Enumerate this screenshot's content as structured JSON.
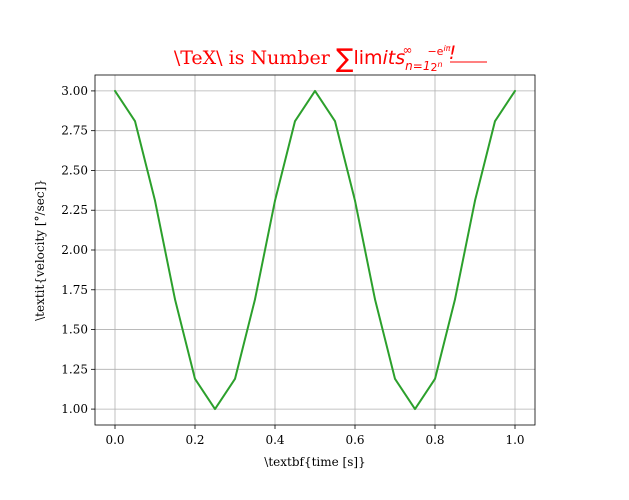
{
  "chart_data": {
    "type": "line",
    "title": "\\TeX\\ is Number ∑lim its n=1 ∞ −e^{iπ}/2^n !",
    "title_parts": {
      "roman": "\\TeX\\ is Number ",
      "sigma": "∑",
      "lim": "lim",
      "its": "its",
      "sub": "n=1",
      "sup": "∞",
      "frac_num": "−e",
      "frac_num_sup": "iπ",
      "frac_den": "2",
      "frac_den_sup": "n",
      "bang": "!"
    },
    "xlabel": "\\textbf{time [s]}",
    "ylabel": "\\textit{velocity [°/sec]}",
    "xlim": [
      -0.05,
      1.05
    ],
    "ylim": [
      0.9,
      3.1
    ],
    "xticks": [
      0.0,
      0.2,
      0.4,
      0.6,
      0.8,
      1.0
    ],
    "xtick_labels": [
      "0.0",
      "0.2",
      "0.4",
      "0.6",
      "0.8",
      "1.0"
    ],
    "yticks": [
      1.0,
      1.25,
      1.5,
      1.75,
      2.0,
      2.25,
      2.5,
      2.75,
      3.0
    ],
    "ytick_labels": [
      "1.00",
      "1.25",
      "1.50",
      "1.75",
      "2.00",
      "2.25",
      "2.50",
      "2.75",
      "3.00"
    ],
    "grid": true,
    "series": [
      {
        "color": "#2ca02c",
        "x": [
          0.0,
          0.05,
          0.1,
          0.15,
          0.2,
          0.25,
          0.3,
          0.35,
          0.4,
          0.45,
          0.5,
          0.55,
          0.6,
          0.65,
          0.7,
          0.75,
          0.8,
          0.85,
          0.9,
          0.95,
          1.0
        ],
        "y": [
          3.0,
          2.81,
          2.31,
          1.69,
          1.19,
          1.0,
          1.19,
          1.69,
          2.31,
          2.81,
          3.0,
          2.81,
          2.31,
          1.69,
          1.19,
          1.0,
          1.19,
          1.69,
          2.31,
          2.81,
          3.0
        ]
      }
    ]
  }
}
